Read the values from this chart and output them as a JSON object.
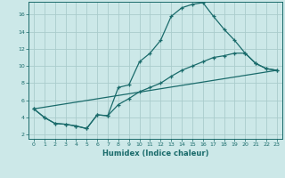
{
  "xlabel": "Humidex (Indice chaleur)",
  "bg_color": "#cce8e8",
  "grid_color": "#aacccc",
  "line_color": "#1a6b6b",
  "xlim": [
    -0.5,
    23.5
  ],
  "ylim": [
    1.5,
    17.5
  ],
  "xticks": [
    0,
    1,
    2,
    3,
    4,
    5,
    6,
    7,
    8,
    9,
    10,
    11,
    12,
    13,
    14,
    15,
    16,
    17,
    18,
    19,
    20,
    21,
    22,
    23
  ],
  "yticks": [
    2,
    4,
    6,
    8,
    10,
    12,
    14,
    16
  ],
  "line1_x": [
    0,
    1,
    2,
    3,
    4,
    5,
    6,
    7,
    8,
    9,
    10,
    11,
    12,
    13,
    14,
    15,
    16,
    17,
    18,
    19,
    20,
    21,
    22,
    23
  ],
  "line1_y": [
    5.0,
    4.0,
    3.3,
    3.2,
    3.0,
    2.7,
    4.3,
    4.2,
    7.5,
    7.8,
    10.5,
    11.5,
    13.0,
    15.8,
    16.8,
    17.2,
    17.4,
    15.8,
    14.3,
    13.0,
    11.5,
    10.3,
    9.7,
    9.5
  ],
  "line2_x": [
    0,
    1,
    2,
    3,
    4,
    5,
    6,
    7,
    8,
    9,
    10,
    11,
    12,
    13,
    14,
    15,
    16,
    17,
    18,
    19,
    20,
    21,
    22,
    23
  ],
  "line2_y": [
    5.0,
    4.0,
    3.3,
    3.2,
    3.0,
    2.7,
    4.3,
    4.2,
    5.5,
    6.2,
    7.0,
    7.5,
    8.0,
    8.8,
    9.5,
    10.0,
    10.5,
    11.0,
    11.2,
    11.5,
    11.5,
    10.3,
    9.7,
    9.5
  ],
  "line3_x": [
    0,
    23
  ],
  "line3_y": [
    5.0,
    9.5
  ]
}
